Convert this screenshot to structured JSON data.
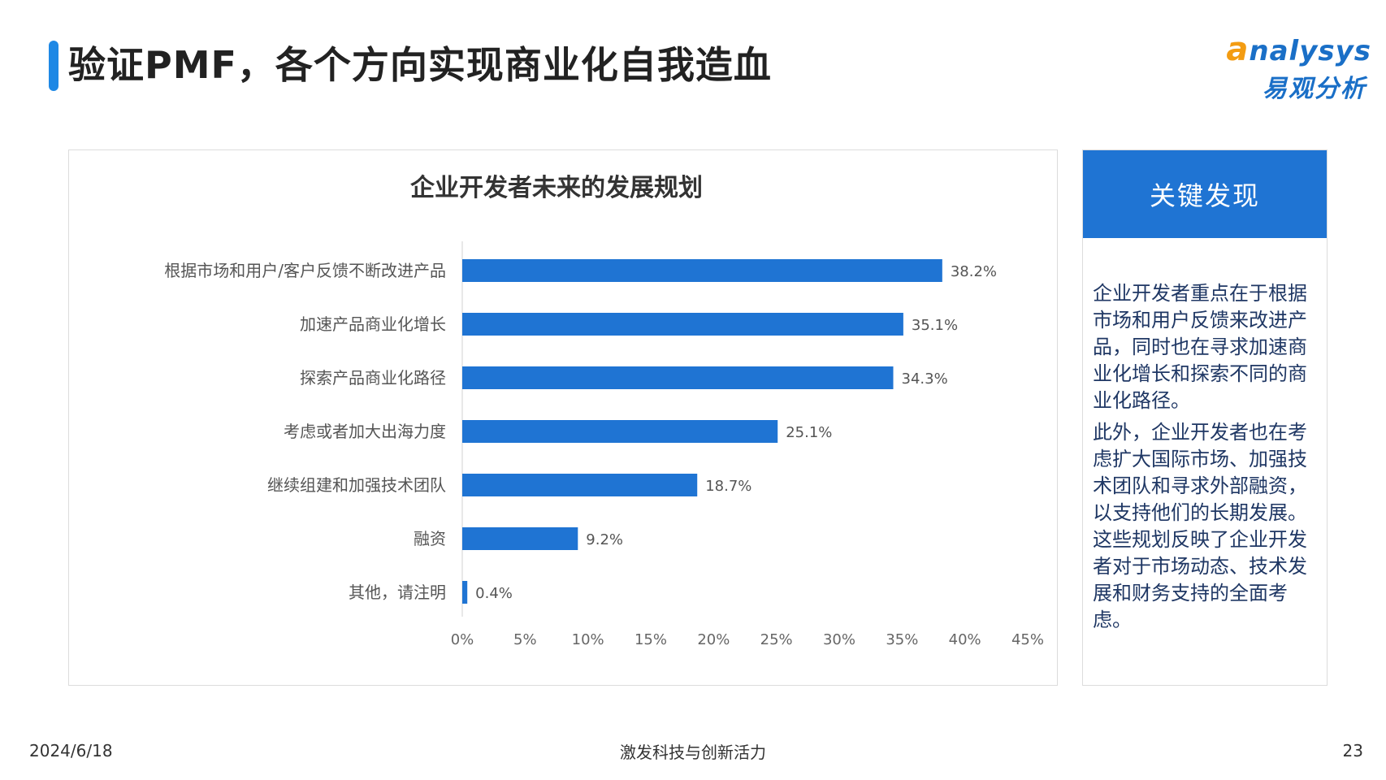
{
  "header": {
    "title": "验证PMF，各个方向实现商业化自我造血"
  },
  "logo": {
    "en_first": "a",
    "en_rest": "nalysys",
    "cn": "易观分析"
  },
  "colors": {
    "accent": "#1e88e5",
    "bar": "#1f74d3",
    "findings_header": "#1f74d3"
  },
  "chart_data": {
    "type": "bar",
    "orientation": "horizontal",
    "title": "企业开发者未来的发展规划",
    "categories": [
      "根据市场和用户/客户反馈不断改进产品",
      "加速产品商业化增长",
      "探索产品商业化路径",
      "考虑或者加大出海力度",
      "继续组建和加强技术团队",
      "融资",
      "其他，请注明"
    ],
    "values": [
      38.2,
      35.1,
      34.3,
      25.1,
      18.7,
      9.2,
      0.4
    ],
    "value_labels": [
      "38.2%",
      "35.1%",
      "34.3%",
      "25.1%",
      "18.7%",
      "9.2%",
      "0.4%"
    ],
    "xlim": [
      0,
      45
    ],
    "x_ticks": [
      0,
      5,
      10,
      15,
      20,
      25,
      30,
      35,
      40,
      45
    ],
    "x_tick_labels": [
      "0%",
      "5%",
      "10%",
      "15%",
      "20%",
      "25%",
      "30%",
      "35%",
      "40%",
      "45%"
    ],
    "grid": false,
    "legend": "none"
  },
  "findings": {
    "header": "关键发现",
    "paragraphs": [
      "企业开发者重点在于根据市场和用户反馈来改进产品，同时也在寻求加速商业化增长和探索不同的商业化路径。",
      "此外，企业开发者也在考虑扩大国际市场、加强技术团队和寻求外部融资，以支持他们的长期发展。这些规划反映了企业开发者对于市场动态、技术发展和财务支持的全面考虑。"
    ]
  },
  "footer": {
    "date": "2024/6/18",
    "slogan": "激发科技与创新活力",
    "page": "23"
  }
}
